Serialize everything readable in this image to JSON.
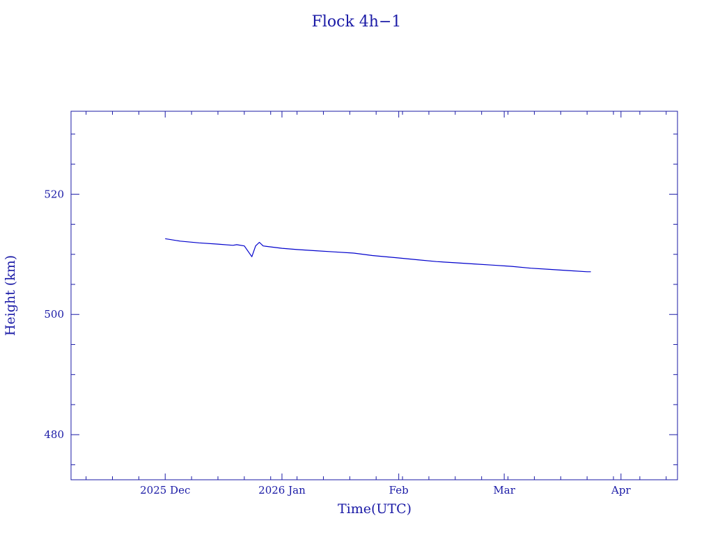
{
  "chart_data": {
    "type": "line",
    "title": "Flock 4h−1",
    "xlabel": "Time(UTC)",
    "ylabel": "Height (km)",
    "xlim": [
      "2025-11-06",
      "2026-04-16"
    ],
    "ylim": [
      472.5,
      533.8
    ],
    "x_ticks": [
      {
        "date": "2025-12-01",
        "label": "2025 Dec"
      },
      {
        "date": "2026-01-01",
        "label": "2026 Jan"
      },
      {
        "date": "2026-02-01",
        "label": "Feb"
      },
      {
        "date": "2026-03-01",
        "label": "Mar"
      },
      {
        "date": "2026-04-01",
        "label": "Apr"
      }
    ],
    "y_ticks": [
      480,
      500,
      520
    ],
    "grid": false,
    "line_color": "#0000cc",
    "axis_color": "#1a1aa6",
    "series": [
      {
        "x": [
          "2025-12-01",
          "2025-12-05",
          "2025-12-10",
          "2025-12-15",
          "2025-12-19",
          "2025-12-20",
          "2025-12-22",
          "2025-12-24",
          "2025-12-25",
          "2025-12-26",
          "2025-12-27",
          "2026-01-01",
          "2026-01-05",
          "2026-01-10",
          "2026-01-15",
          "2026-01-20",
          "2026-01-25",
          "2026-02-01",
          "2026-02-06",
          "2026-02-11",
          "2026-02-16",
          "2026-02-21",
          "2026-02-26",
          "2026-03-03",
          "2026-03-08",
          "2026-03-13",
          "2026-03-18",
          "2026-03-23",
          "2026-03-24"
        ],
        "y": [
          512.6,
          512.2,
          511.9,
          511.7,
          511.5,
          511.6,
          511.4,
          509.6,
          511.4,
          512.0,
          511.4,
          511.0,
          510.8,
          510.6,
          510.4,
          510.2,
          509.8,
          509.4,
          509.1,
          508.8,
          508.6,
          508.4,
          508.2,
          508.0,
          507.7,
          507.5,
          507.3,
          507.1,
          507.1
        ]
      }
    ]
  }
}
